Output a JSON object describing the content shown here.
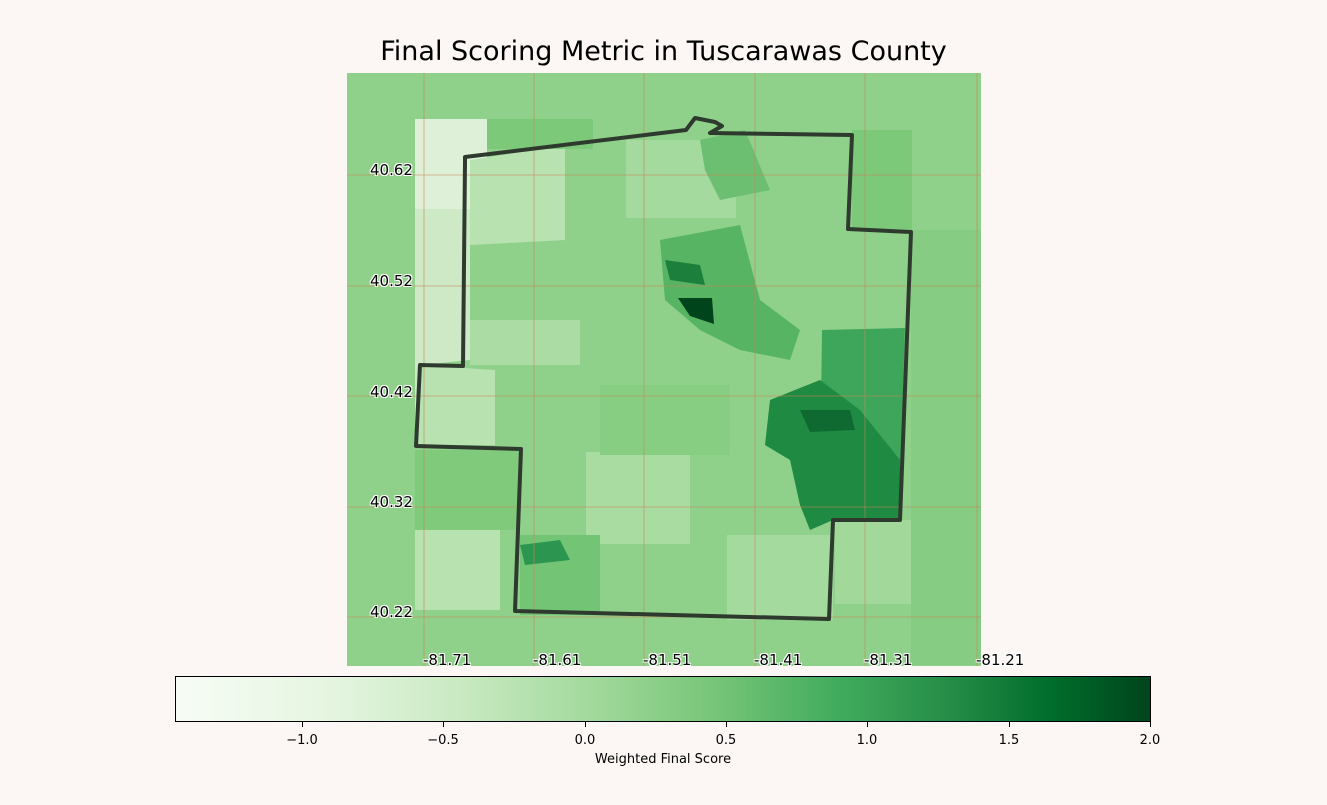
{
  "title": "Final Scoring Metric in Tuscarawas County",
  "map": {
    "latitude_ticks": [
      "40.62",
      "40.52",
      "40.42",
      "40.32",
      "40.22"
    ],
    "longitude_ticks": [
      "-81.71",
      "-81.61",
      "-81.51",
      "-81.41",
      "-81.31",
      "-81.21"
    ],
    "grid": true,
    "boundary_color": "#2f3a2f",
    "gridline_color": "#c8865a",
    "colormap": "Greens"
  },
  "colorbar": {
    "label": "Weighted Final Score",
    "min": -1.45,
    "max": 2.0,
    "tick_labels": [
      "−1.0",
      "−0.5",
      "0.0",
      "0.5",
      "1.0",
      "1.5",
      "2.0"
    ],
    "tick_values": [
      -1.0,
      -0.5,
      0.0,
      0.5,
      1.0,
      1.5,
      2.0
    ]
  }
}
